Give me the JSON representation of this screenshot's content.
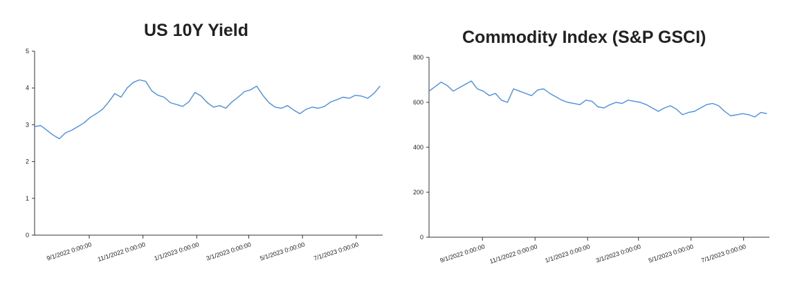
{
  "chart_data": [
    {
      "type": "line",
      "title": "US 10Y Yield",
      "xlabel": "",
      "ylabel": "",
      "ylim": [
        0,
        5
      ],
      "y_ticks": [
        "0",
        "1",
        "2",
        "3",
        "4",
        "5"
      ],
      "x_ticks": [
        "9/1/2022 0:00:00",
        "11/1/2022 0:00:00",
        "1/1/2023 0:00:00",
        "3/1/2023 0:00:00",
        "5/1/2023 0:00:00",
        "7/1/2023 0:00:00"
      ],
      "x_range": [
        "2022-07-01",
        "2023-07-31"
      ],
      "grid": false,
      "line_color": "#4a8fe2",
      "series": [
        {
          "x": [
            "2022-07-01",
            "2022-07-08",
            "2022-07-15",
            "2022-07-22",
            "2022-07-29",
            "2022-08-05",
            "2022-08-12",
            "2022-08-19",
            "2022-08-26",
            "2022-09-02",
            "2022-09-09",
            "2022-09-16",
            "2022-09-23",
            "2022-09-30",
            "2022-10-07",
            "2022-10-14",
            "2022-10-21",
            "2022-10-28",
            "2022-11-04",
            "2022-11-11",
            "2022-11-18",
            "2022-11-25",
            "2022-12-02",
            "2022-12-09",
            "2022-12-16",
            "2022-12-23",
            "2022-12-30",
            "2023-01-06",
            "2023-01-13",
            "2023-01-20",
            "2023-01-27",
            "2023-02-03",
            "2023-02-10",
            "2023-02-17",
            "2023-02-24",
            "2023-03-03",
            "2023-03-10",
            "2023-03-17",
            "2023-03-24",
            "2023-03-31",
            "2023-04-07",
            "2023-04-14",
            "2023-04-21",
            "2023-04-28",
            "2023-05-05",
            "2023-05-12",
            "2023-05-19",
            "2023-05-26",
            "2023-06-02",
            "2023-06-09",
            "2023-06-16",
            "2023-06-23",
            "2023-06-30",
            "2023-07-07",
            "2023-07-14",
            "2023-07-21",
            "2023-07-28"
          ],
          "values": [
            2.95,
            2.98,
            2.85,
            2.72,
            2.62,
            2.78,
            2.85,
            2.95,
            3.05,
            3.2,
            3.3,
            3.42,
            3.62,
            3.85,
            3.75,
            4.0,
            4.15,
            4.22,
            4.18,
            3.92,
            3.8,
            3.75,
            3.6,
            3.55,
            3.5,
            3.62,
            3.88,
            3.78,
            3.6,
            3.48,
            3.52,
            3.45,
            3.62,
            3.75,
            3.9,
            3.95,
            4.05,
            3.8,
            3.6,
            3.48,
            3.45,
            3.52,
            3.4,
            3.3,
            3.42,
            3.48,
            3.45,
            3.5,
            3.62,
            3.68,
            3.75,
            3.72,
            3.8,
            3.78,
            3.72,
            3.85,
            4.05
          ]
        }
      ]
    },
    {
      "type": "line",
      "title": "Commodity Index (S&P GSCI)",
      "xlabel": "",
      "ylabel": "",
      "ylim": [
        0,
        800
      ],
      "y_ticks": [
        "0",
        "200",
        "400",
        "600",
        "800"
      ],
      "x_ticks": [
        "9/1/2022 0:00:00",
        "11/1/2022 0:00:00",
        "1/1/2023 0:00:00",
        "3/1/2023 0:00:00",
        "5/1/2023 0:00:00",
        "7/1/2023 0:00:00"
      ],
      "x_range": [
        "2022-07-01",
        "2023-07-31"
      ],
      "grid": false,
      "line_color": "#4a8fe2",
      "series": [
        {
          "x": [
            "2022-07-01",
            "2022-07-08",
            "2022-07-15",
            "2022-07-22",
            "2022-07-29",
            "2022-08-05",
            "2022-08-12",
            "2022-08-19",
            "2022-08-26",
            "2022-09-02",
            "2022-09-09",
            "2022-09-16",
            "2022-09-23",
            "2022-09-30",
            "2022-10-07",
            "2022-10-14",
            "2022-10-21",
            "2022-10-28",
            "2022-11-04",
            "2022-11-11",
            "2022-11-18",
            "2022-11-25",
            "2022-12-02",
            "2022-12-09",
            "2022-12-16",
            "2022-12-23",
            "2022-12-30",
            "2023-01-06",
            "2023-01-13",
            "2023-01-20",
            "2023-01-27",
            "2023-02-03",
            "2023-02-10",
            "2023-02-17",
            "2023-02-24",
            "2023-03-03",
            "2023-03-10",
            "2023-03-17",
            "2023-03-24",
            "2023-03-31",
            "2023-04-07",
            "2023-04-14",
            "2023-04-21",
            "2023-04-28",
            "2023-05-05",
            "2023-05-12",
            "2023-05-19",
            "2023-05-26",
            "2023-06-02",
            "2023-06-09",
            "2023-06-16",
            "2023-06-23",
            "2023-06-30",
            "2023-07-07",
            "2023-07-14",
            "2023-07-21",
            "2023-07-28"
          ],
          "values": [
            650,
            670,
            690,
            675,
            650,
            665,
            680,
            695,
            660,
            650,
            630,
            640,
            610,
            600,
            660,
            650,
            640,
            630,
            655,
            660,
            640,
            625,
            610,
            600,
            595,
            590,
            610,
            605,
            580,
            575,
            590,
            600,
            595,
            610,
            605,
            600,
            590,
            575,
            560,
            575,
            585,
            570,
            545,
            555,
            560,
            575,
            590,
            595,
            585,
            560,
            540,
            545,
            550,
            545,
            535,
            555,
            550
          ]
        }
      ]
    }
  ]
}
